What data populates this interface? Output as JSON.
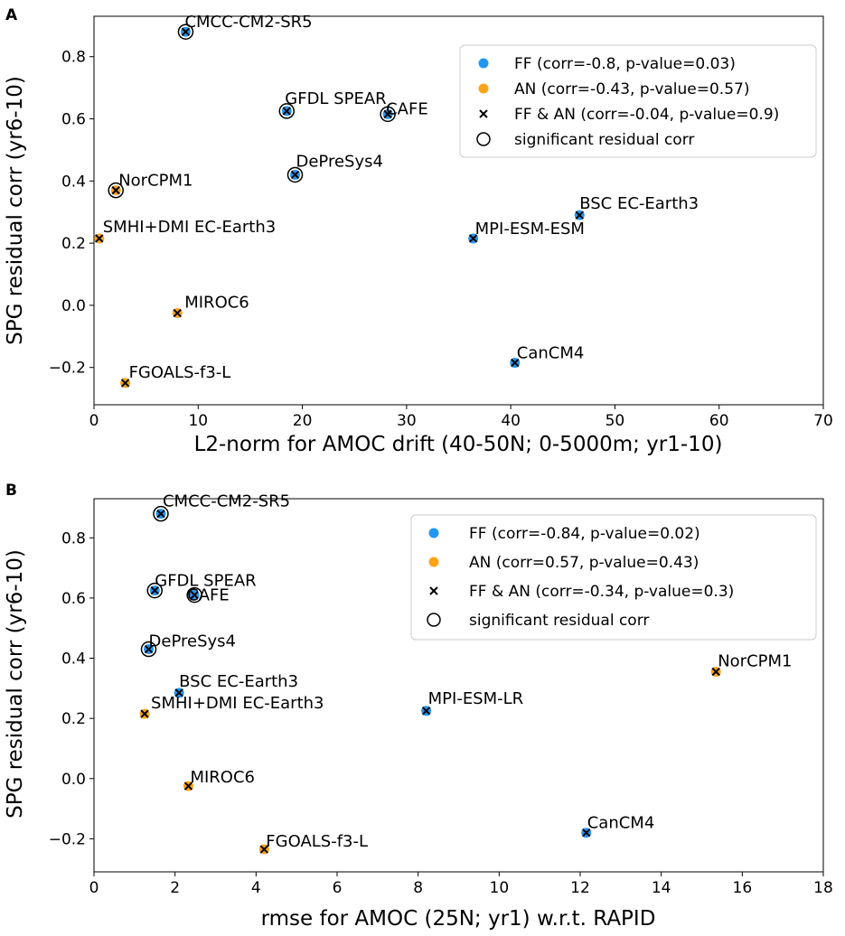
{
  "colors": {
    "FF": "#2196f3",
    "AN": "#ffa319"
  },
  "chart_data": [
    {
      "panel": "A",
      "type": "scatter",
      "xlabel": "L2-norm for AMOC drift (40-50N; 0-5000m; yr1-10)",
      "ylabel": "SPG residual corr (yr6-10)",
      "xlim": [
        0,
        70
      ],
      "ylim": [
        -0.32,
        0.93
      ],
      "xticks": [
        0,
        10,
        20,
        30,
        40,
        50,
        60,
        70
      ],
      "yticks": [
        -0.2,
        0.0,
        0.2,
        0.4,
        0.6,
        0.8
      ],
      "legend_position": "top-right",
      "legend": [
        {
          "kind": "FF",
          "label": "FF (corr=-0.8, p-value=0.03)"
        },
        {
          "kind": "AN",
          "label": "AN (corr=-0.43, p-value=0.57)"
        },
        {
          "kind": "X",
          "label": "FF & AN (corr=-0.04, p-value=0.9)"
        },
        {
          "kind": "SIG",
          "label": "significant residual corr"
        }
      ],
      "points": [
        {
          "name": "CMCC-CM2-SR5",
          "x": 8.8,
          "y": 0.88,
          "group": "FF",
          "significant": true
        },
        {
          "name": "GFDL SPEAR",
          "x": 18.5,
          "y": 0.625,
          "group": "FF",
          "significant": true
        },
        {
          "name": "CAFE",
          "x": 28.2,
          "y": 0.615,
          "group": "FF",
          "significant": true
        },
        {
          "name": "DePreSys4",
          "x": 19.3,
          "y": 0.42,
          "group": "FF",
          "significant": true
        },
        {
          "name": "NorCPM1",
          "x": 2.1,
          "y": 0.37,
          "group": "AN",
          "significant": true
        },
        {
          "name": "SMHI+DMI EC-Earth3",
          "x": 0.5,
          "y": 0.215,
          "group": "AN",
          "significant": false
        },
        {
          "name": "BSC EC-Earth3",
          "x": 46.6,
          "y": 0.29,
          "group": "FF",
          "significant": false
        },
        {
          "name": "MPI-ESM-ESM",
          "x": 36.4,
          "y": 0.215,
          "group": "FF",
          "significant": false
        },
        {
          "name": "MIROC6",
          "x": 8.0,
          "y": -0.025,
          "group": "AN",
          "significant": false
        },
        {
          "name": "CanCM4",
          "x": 40.4,
          "y": -0.185,
          "group": "FF",
          "significant": false
        },
        {
          "name": "FGOALS-f3-L",
          "x": 3.0,
          "y": -0.25,
          "group": "AN",
          "significant": false
        }
      ]
    },
    {
      "panel": "B",
      "type": "scatter",
      "xlabel": "rmse for AMOC (25N; yr1) w.r.t. RAPID",
      "ylabel": "SPG residual corr (yr6-10)",
      "xlim": [
        0,
        18
      ],
      "ylim": [
        -0.31,
        0.93
      ],
      "xticks": [
        0,
        2,
        4,
        6,
        8,
        10,
        12,
        14,
        16,
        18
      ],
      "yticks": [
        -0.2,
        0.0,
        0.2,
        0.4,
        0.6,
        0.8
      ],
      "legend_position": "top-right",
      "legend": [
        {
          "kind": "FF",
          "label": "FF (corr=-0.84, p-value=0.02)"
        },
        {
          "kind": "AN",
          "label": "AN (corr=0.57, p-value=0.43)"
        },
        {
          "kind": "X",
          "label": "FF & AN (corr=-0.34, p-value=0.3)"
        },
        {
          "kind": "SIG",
          "label": "significant residual corr"
        }
      ],
      "points": [
        {
          "name": "CMCC-CM2-SR5",
          "x": 1.65,
          "y": 0.88,
          "group": "FF",
          "significant": true
        },
        {
          "name": "GFDL SPEAR",
          "x": 1.5,
          "y": 0.625,
          "group": "FF",
          "significant": true
        },
        {
          "name": "CAFE",
          "x": 2.48,
          "y": 0.61,
          "group": "FF",
          "significant": true
        },
        {
          "name": "DePreSys4",
          "x": 1.35,
          "y": 0.43,
          "group": "FF",
          "significant": true
        },
        {
          "name": "BSC EC-Earth3",
          "x": 2.1,
          "y": 0.285,
          "group": "FF",
          "significant": false
        },
        {
          "name": "SMHI+DMI EC-Earth3",
          "x": 1.25,
          "y": 0.215,
          "group": "AN",
          "significant": false
        },
        {
          "name": "MPI-ESM-LR",
          "x": 8.2,
          "y": 0.225,
          "group": "FF",
          "significant": false
        },
        {
          "name": "NorCPM1",
          "x": 15.35,
          "y": 0.355,
          "group": "AN",
          "significant": false
        },
        {
          "name": "MIROC6",
          "x": 2.33,
          "y": -0.025,
          "group": "AN",
          "significant": false
        },
        {
          "name": "CanCM4",
          "x": 12.15,
          "y": -0.18,
          "group": "FF",
          "significant": false
        },
        {
          "name": "FGOALS-f3-L",
          "x": 4.2,
          "y": -0.235,
          "group": "AN",
          "significant": false
        }
      ]
    }
  ]
}
